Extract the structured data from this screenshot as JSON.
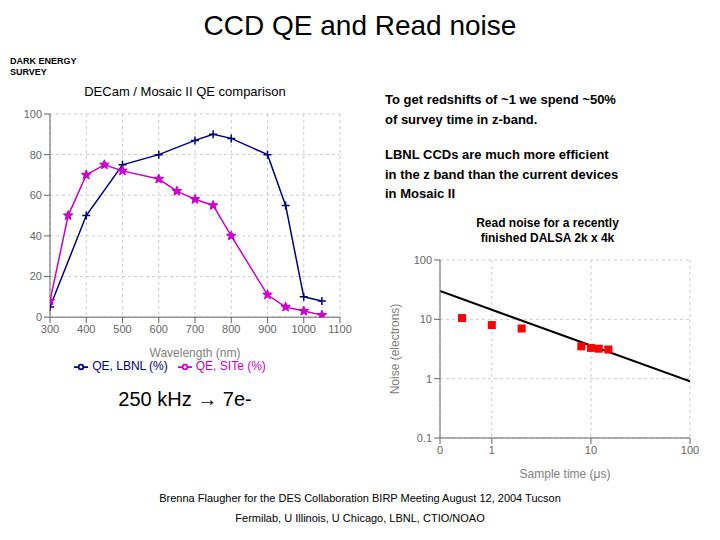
{
  "title": "CCD QE and Read noise",
  "annotations": [
    "DARK ENERGY\nSURVEY",
    "To get redshifts of ~1 we spend ~50%\nof survey time in z-band.",
    "LBNL CCDs are much more efficient\nin the z band than the current devices\nin Mosaic II",
    "250 kHz → 7e-",
    "Brenna Flaugher for the DES Collaboration      BIRP Meeting August 12, 2004 Tucson",
    "Fermilab, U Illinois, U Chicago, LBNL, CTIO/NOAO"
  ],
  "chart_data": [
    {
      "type": "line",
      "title": "DECam / Mosaic II QE comparison",
      "xlabel": "Wavelength (nm)",
      "xlim": [
        300,
        1100
      ],
      "xticks": [
        300,
        400,
        500,
        600,
        700,
        800,
        900,
        1000,
        1100
      ],
      "ylim": [
        0,
        100
      ],
      "yticks": [
        0,
        20,
        40,
        60,
        80,
        100
      ],
      "grid": true,
      "legend": "bottom",
      "series": [
        {
          "name": "QE, LBNL (%)",
          "color": "#000080",
          "marker": "plus",
          "x": [
            300,
            400,
            500,
            600,
            700,
            750,
            800,
            900,
            950,
            1000,
            1050
          ],
          "values": [
            5,
            50,
            75,
            80,
            87,
            90,
            88,
            80,
            55,
            10,
            8
          ]
        },
        {
          "name": "QE, SITe (%)",
          "color": "#cc00cc",
          "marker": "star",
          "x": [
            300,
            350,
            400,
            450,
            500,
            600,
            650,
            700,
            750,
            800,
            900,
            950,
            1000,
            1050
          ],
          "values": [
            8,
            50,
            70,
            75,
            72,
            68,
            62,
            58,
            55,
            40,
            11,
            5,
            3,
            1
          ]
        }
      ]
    },
    {
      "type": "scatter",
      "log": true,
      "xlabel": "Sample time (μs)",
      "ylabel": "Noise (electrons)",
      "annotations": [
        "Read noise for a recently\nfinished DALSA 2k x 4k"
      ],
      "xlim": [
        0.3,
        100
      ],
      "xticks": [
        {
          "value": 0.3,
          "label": "0"
        },
        1,
        10,
        100
      ],
      "ylim": [
        0.1,
        100
      ],
      "yticks": [
        0.1,
        1,
        10,
        100
      ],
      "grid": true,
      "series": [
        {
          "type": "line",
          "color": "#000000",
          "x": [
            0.3,
            100
          ],
          "values": [
            30,
            0.9
          ]
        },
        {
          "type": "scatter",
          "color": "red",
          "marker": "square",
          "x": [
            0.5,
            1.0,
            2.0,
            8.0,
            10.0,
            12.0,
            15.0
          ],
          "values": [
            10.5,
            8.0,
            7.0,
            3.5,
            3.3,
            3.2,
            3.1
          ]
        }
      ]
    }
  ]
}
